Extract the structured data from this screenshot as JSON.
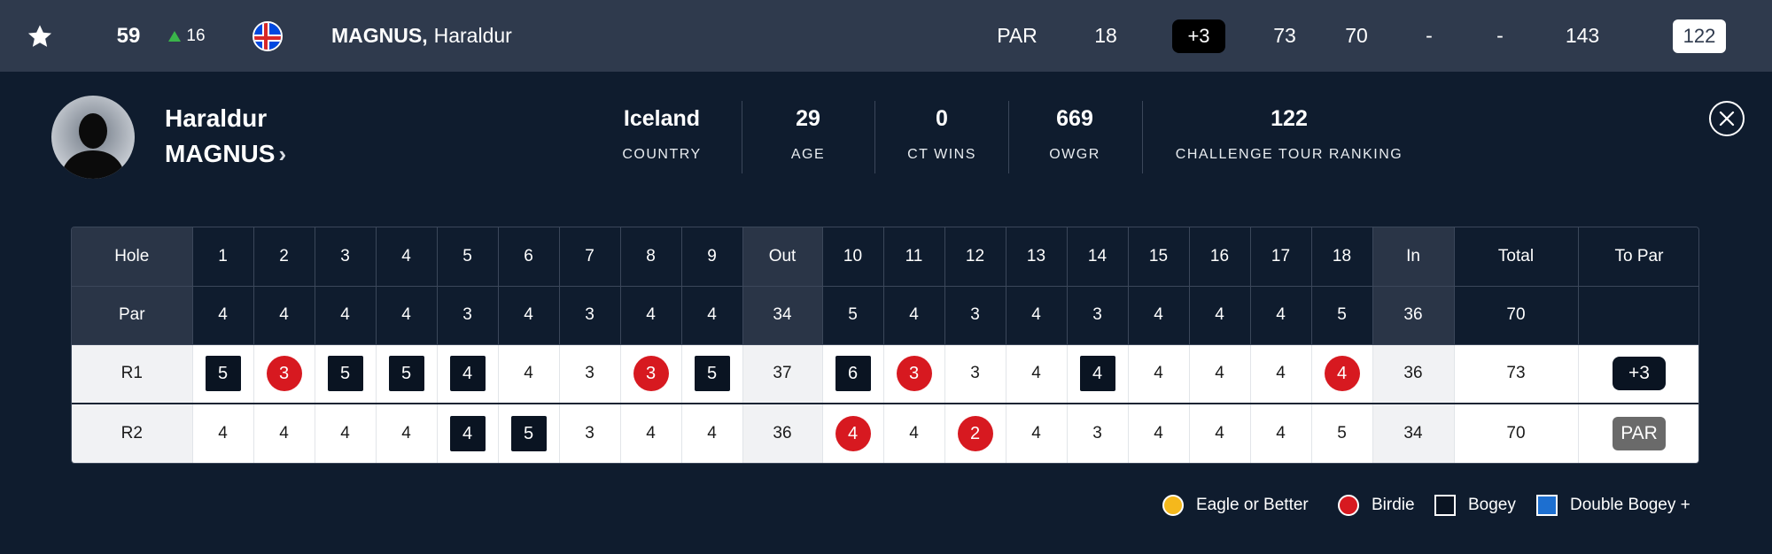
{
  "topbar": {
    "position": "59",
    "movement": "16",
    "player_lastname": "MAGNUS,",
    "player_firstname": "Haraldur",
    "today": "PAR",
    "thru": "18",
    "to_par": "+3",
    "r1": "73",
    "r2": "70",
    "r3": "-",
    "r4": "-",
    "total": "143",
    "ranking": "122"
  },
  "player": {
    "first_name": "Haraldur",
    "last_name": "MAGNUS",
    "chevron": "›",
    "stats": [
      {
        "value": "Iceland",
        "label": "COUNTRY"
      },
      {
        "value": "29",
        "label": "AGE"
      },
      {
        "value": "0",
        "label": "CT WINS"
      },
      {
        "value": "669",
        "label": "OWGR"
      },
      {
        "value": "122",
        "label": "CHALLENGE TOUR RANKING"
      }
    ]
  },
  "scorecard": {
    "headers": {
      "hole": "Hole",
      "par": "Par",
      "out": "Out",
      "in": "In",
      "total": "Total",
      "to_par": "To Par"
    },
    "holes": [
      "1",
      "2",
      "3",
      "4",
      "5",
      "6",
      "7",
      "8",
      "9",
      "10",
      "11",
      "12",
      "13",
      "14",
      "15",
      "16",
      "17",
      "18"
    ],
    "pars": [
      "4",
      "4",
      "4",
      "4",
      "3",
      "4",
      "3",
      "4",
      "4",
      "5",
      "4",
      "3",
      "4",
      "3",
      "4",
      "4",
      "4",
      "5"
    ],
    "par_out": "34",
    "par_in": "36",
    "par_total": "70",
    "rounds": [
      {
        "label": "R1",
        "scores": [
          "5",
          "3",
          "5",
          "5",
          "4",
          "4",
          "3",
          "3",
          "5",
          "6",
          "3",
          "3",
          "4",
          "4",
          "4",
          "4",
          "4",
          "4"
        ],
        "types": [
          "bogey",
          "birdie",
          "bogey",
          "bogey",
          "bogey",
          "par",
          "par",
          "birdie",
          "bogey",
          "bogey",
          "birdie",
          "par",
          "par",
          "bogey",
          "par",
          "par",
          "par",
          "birdie"
        ],
        "out": "37",
        "in": "36",
        "total": "73",
        "to_par": "+3"
      },
      {
        "label": "R2",
        "scores": [
          "4",
          "4",
          "4",
          "4",
          "4",
          "5",
          "3",
          "4",
          "4",
          "4",
          "4",
          "2",
          "4",
          "3",
          "4",
          "4",
          "4",
          "5"
        ],
        "types": [
          "par",
          "par",
          "par",
          "par",
          "bogey",
          "bogey",
          "par",
          "par",
          "par",
          "birdie",
          "par",
          "birdie",
          "par",
          "par",
          "par",
          "par",
          "par",
          "par"
        ],
        "out": "36",
        "in": "34",
        "total": "70",
        "to_par": "PAR"
      }
    ]
  },
  "legend": [
    {
      "label": "Eagle or Better",
      "shape": "circle",
      "color": "#f5b81c"
    },
    {
      "label": "Birdie",
      "shape": "circle",
      "color": "#d71920"
    },
    {
      "label": "Bogey",
      "shape": "square",
      "color": "#0a1422"
    },
    {
      "label": "Double Bogey +",
      "shape": "square",
      "color": "#1d6fd0"
    }
  ],
  "icons": {
    "favorite": "star-icon",
    "movement": "arrow-up-icon",
    "flag": "iceland-flag-icon",
    "close": "close-icon"
  },
  "colors": {
    "topbar_bg": "#2f3a4d",
    "page_bg": "#0f1c2e",
    "birdie": "#d71920",
    "bogey": "#0a1422",
    "movement_up": "#3ab54a"
  }
}
